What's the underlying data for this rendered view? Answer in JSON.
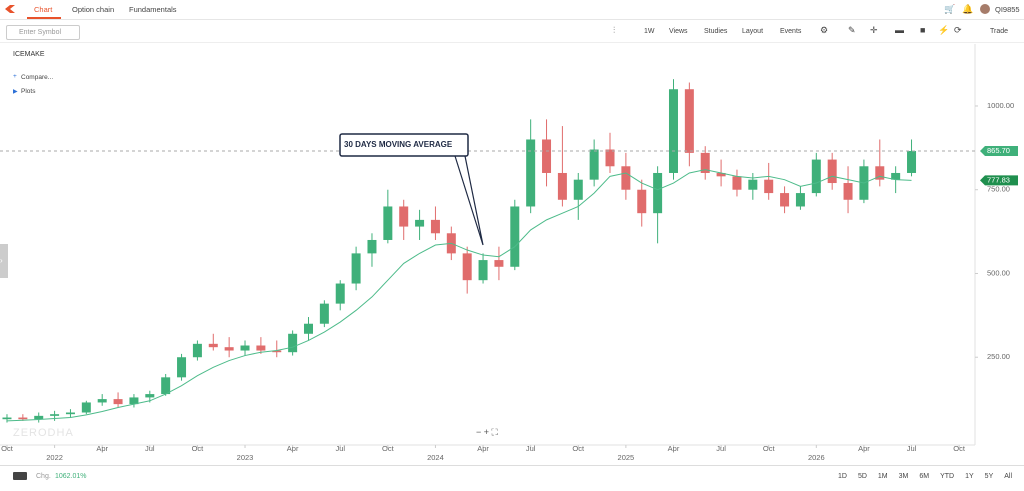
{
  "nav": {
    "tabs": [
      "Chart",
      "Option chain",
      "Fundamentals"
    ],
    "user": "QI9855"
  },
  "toolbar": {
    "search_placeholder": "Enter Symbol",
    "interval": "1W",
    "menus": [
      "Views",
      "Studies",
      "Layout",
      "Events"
    ],
    "trade": "Trade"
  },
  "panel": {
    "symbol": "ICEMAKE",
    "compare": "Compare...",
    "plots": "Plots",
    "watermark": "ZERODHA"
  },
  "footer": {
    "change_label": "Chg.",
    "change_value": "1062.01%",
    "ranges": [
      "1D",
      "5D",
      "1M",
      "3M",
      "6M",
      "YTD",
      "1Y",
      "5Y",
      "All"
    ]
  },
  "chart_data": {
    "type": "candlestick",
    "annotation": "30 DAYS MOVING AVERAGE",
    "xlim": [
      -0.44,
      61
    ],
    "xticks": [
      {
        "value": 0,
        "label": "Oct"
      },
      {
        "value": 3,
        "label": "2022"
      },
      {
        "value": 6,
        "label": "Apr"
      },
      {
        "value": 9,
        "label": "Jul"
      },
      {
        "value": 12,
        "label": "Oct"
      },
      {
        "value": 15,
        "label": "2023"
      },
      {
        "value": 18,
        "label": "Apr"
      },
      {
        "value": 21,
        "label": "Jul"
      },
      {
        "value": 24,
        "label": "Oct"
      },
      {
        "value": 27,
        "label": "2024"
      },
      {
        "value": 30,
        "label": "Apr"
      },
      {
        "value": 33,
        "label": "Jul"
      },
      {
        "value": 36,
        "label": "Oct"
      },
      {
        "value": 39,
        "label": "2025"
      },
      {
        "value": 42,
        "label": "Apr"
      },
      {
        "value": 45,
        "label": "Jul"
      },
      {
        "value": 48,
        "label": "Oct"
      },
      {
        "value": 51,
        "label": "2026"
      },
      {
        "value": 54,
        "label": "Apr"
      },
      {
        "value": 57,
        "label": "Jul"
      },
      {
        "value": 60,
        "label": "Oct"
      }
    ],
    "ylim": [
      -12,
      1185
    ],
    "yticks": [
      {
        "value": 250,
        "label": "250.00"
      },
      {
        "value": 500,
        "label": "500.00"
      },
      {
        "value": 750,
        "label": "750.00"
      },
      {
        "value": 1000,
        "label": "1000.00"
      }
    ],
    "up_color": "#3fb07a",
    "down_color": "#e06c6c",
    "open": [
      65,
      70,
      65,
      75,
      80,
      85,
      115,
      125,
      110,
      130,
      140,
      190,
      250,
      290,
      280,
      270,
      285,
      270,
      265,
      320,
      350,
      410,
      470,
      560,
      600,
      700,
      640,
      660,
      620,
      560,
      480,
      540,
      520,
      700,
      900,
      800,
      720,
      780,
      870,
      820,
      750,
      680,
      800,
      1050,
      860,
      800,
      790,
      750,
      780,
      740,
      700,
      740,
      840,
      770,
      720,
      820,
      780,
      800
    ],
    "high": [
      80,
      80,
      85,
      90,
      95,
      120,
      140,
      145,
      140,
      150,
      200,
      260,
      300,
      320,
      310,
      300,
      310,
      300,
      330,
      370,
      420,
      480,
      580,
      620,
      750,
      720,
      690,
      700,
      640,
      580,
      560,
      580,
      720,
      960,
      960,
      940,
      800,
      900,
      920,
      860,
      780,
      820,
      1080,
      1070,
      880,
      840,
      810,
      800,
      830,
      760,
      760,
      860,
      860,
      820,
      840,
      900,
      820,
      900
    ],
    "low": [
      55,
      60,
      55,
      60,
      70,
      80,
      105,
      100,
      100,
      115,
      135,
      180,
      240,
      270,
      250,
      255,
      260,
      250,
      255,
      300,
      340,
      390,
      450,
      520,
      590,
      600,
      600,
      600,
      540,
      440,
      470,
      480,
      510,
      680,
      760,
      700,
      660,
      760,
      800,
      720,
      640,
      590,
      780,
      820,
      780,
      760,
      730,
      720,
      720,
      680,
      690,
      730,
      750,
      680,
      710,
      760,
      740,
      790
    ],
    "close": [
      70,
      65,
      75,
      80,
      85,
      115,
      125,
      110,
      130,
      140,
      190,
      250,
      290,
      280,
      270,
      285,
      270,
      265,
      320,
      350,
      410,
      470,
      560,
      600,
      700,
      640,
      660,
      620,
      560,
      480,
      540,
      520,
      700,
      900,
      800,
      720,
      780,
      870,
      820,
      750,
      680,
      800,
      1050,
      860,
      800,
      790,
      750,
      780,
      740,
      700,
      740,
      840,
      770,
      720,
      820,
      780,
      800,
      865.7
    ],
    "last_label": "865.70",
    "average": {
      "color": "#4dbb8a",
      "last_label": "777.83",
      "values": [
        60,
        62,
        64,
        67,
        70,
        78,
        88,
        100,
        110,
        120,
        140,
        165,
        195,
        220,
        240,
        255,
        265,
        270,
        280,
        300,
        325,
        355,
        390,
        430,
        480,
        530,
        560,
        585,
        590,
        570,
        555,
        550,
        580,
        630,
        660,
        680,
        700,
        740,
        790,
        800,
        770,
        750,
        770,
        800,
        810,
        800,
        790,
        785,
        790,
        780,
        760,
        770,
        790,
        780,
        770,
        790,
        780,
        777.83
      ]
    }
  }
}
